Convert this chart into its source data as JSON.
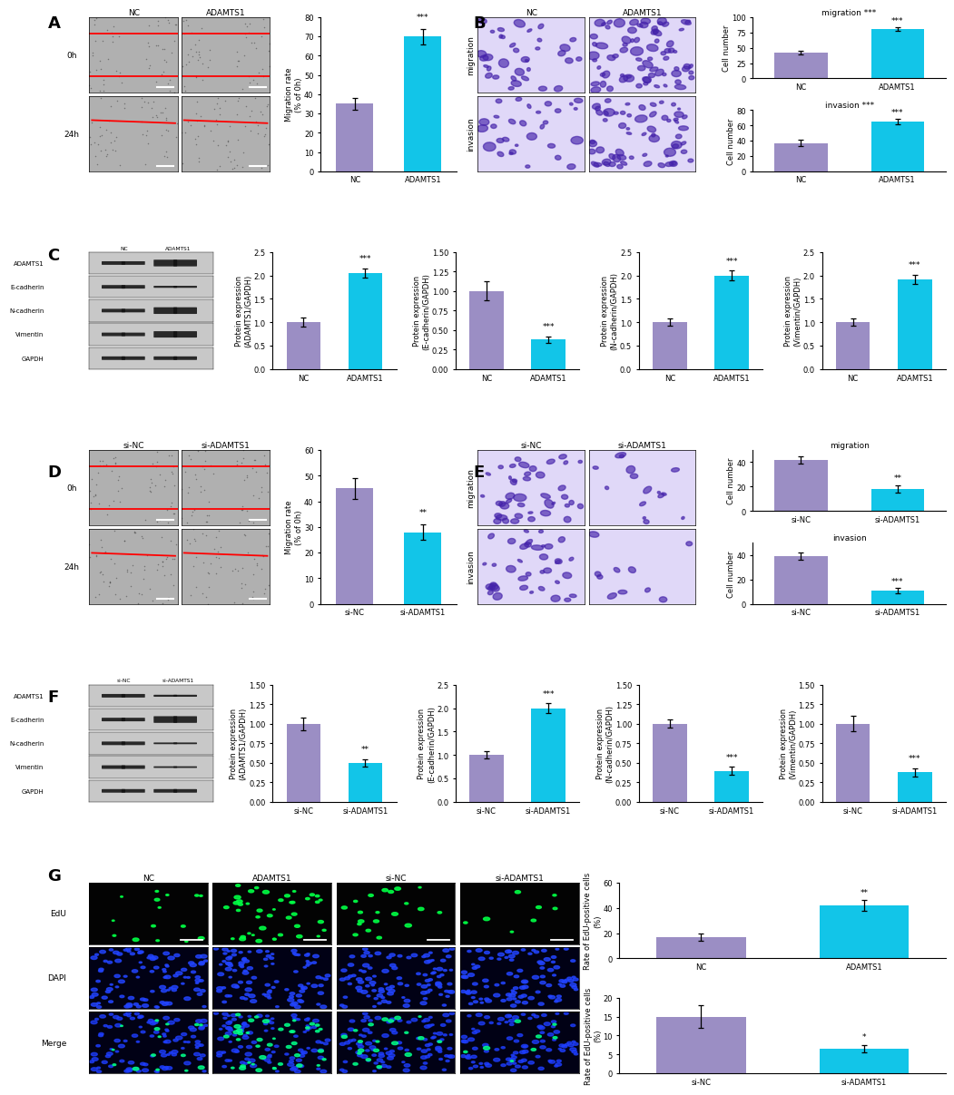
{
  "purple": "#9B8EC4",
  "cyan": "#12C5E8",
  "bar_A": {
    "vals": [
      35,
      70
    ],
    "errs": [
      3,
      4
    ]
  },
  "bar_B_mig": {
    "vals": [
      42,
      80
    ],
    "errs": [
      3,
      3
    ]
  },
  "bar_B_inv": {
    "vals": [
      37,
      65
    ],
    "errs": [
      4,
      3
    ]
  },
  "bar_C_A1": {
    "vals": [
      1.0,
      2.05
    ],
    "errs": [
      0.1,
      0.1
    ]
  },
  "bar_C_Ec": {
    "vals": [
      1.0,
      0.38
    ],
    "errs": [
      0.12,
      0.04
    ]
  },
  "bar_C_Nc": {
    "vals": [
      1.0,
      2.0
    ],
    "errs": [
      0.08,
      0.1
    ]
  },
  "bar_C_Vi": {
    "vals": [
      1.0,
      1.92
    ],
    "errs": [
      0.08,
      0.1
    ]
  },
  "bar_D": {
    "vals": [
      45,
      28
    ],
    "errs": [
      4,
      3
    ]
  },
  "bar_E_mig": {
    "vals": [
      42,
      18
    ],
    "errs": [
      3,
      3
    ]
  },
  "bar_E_inv": {
    "vals": [
      39,
      11
    ],
    "errs": [
      3,
      2
    ]
  },
  "bar_F_A1": {
    "vals": [
      1.0,
      0.5
    ],
    "errs": [
      0.08,
      0.05
    ]
  },
  "bar_F_Ec": {
    "vals": [
      1.0,
      2.0
    ],
    "errs": [
      0.08,
      0.1
    ]
  },
  "bar_F_Nc": {
    "vals": [
      1.0,
      0.4
    ],
    "errs": [
      0.05,
      0.05
    ]
  },
  "bar_F_Vi": {
    "vals": [
      1.0,
      0.38
    ],
    "errs": [
      0.1,
      0.05
    ]
  },
  "bar_G1": {
    "vals": [
      17,
      42
    ],
    "errs": [
      3,
      4
    ]
  },
  "bar_G2": {
    "vals": [
      15,
      6.5
    ],
    "errs": [
      3,
      1
    ]
  },
  "lfs": 6.5,
  "tfs": 6.0,
  "panel_fs": 13,
  "wb_labels": [
    "ADAMTS1",
    "E-cadherin",
    "N-cadherin",
    "Vimentin",
    "GAPDH"
  ],
  "wb_C_si": [
    2.0,
    0.5,
    2.0,
    1.9,
    1.0
  ],
  "wb_F_si": [
    0.5,
    2.0,
    0.4,
    0.38,
    1.0
  ]
}
